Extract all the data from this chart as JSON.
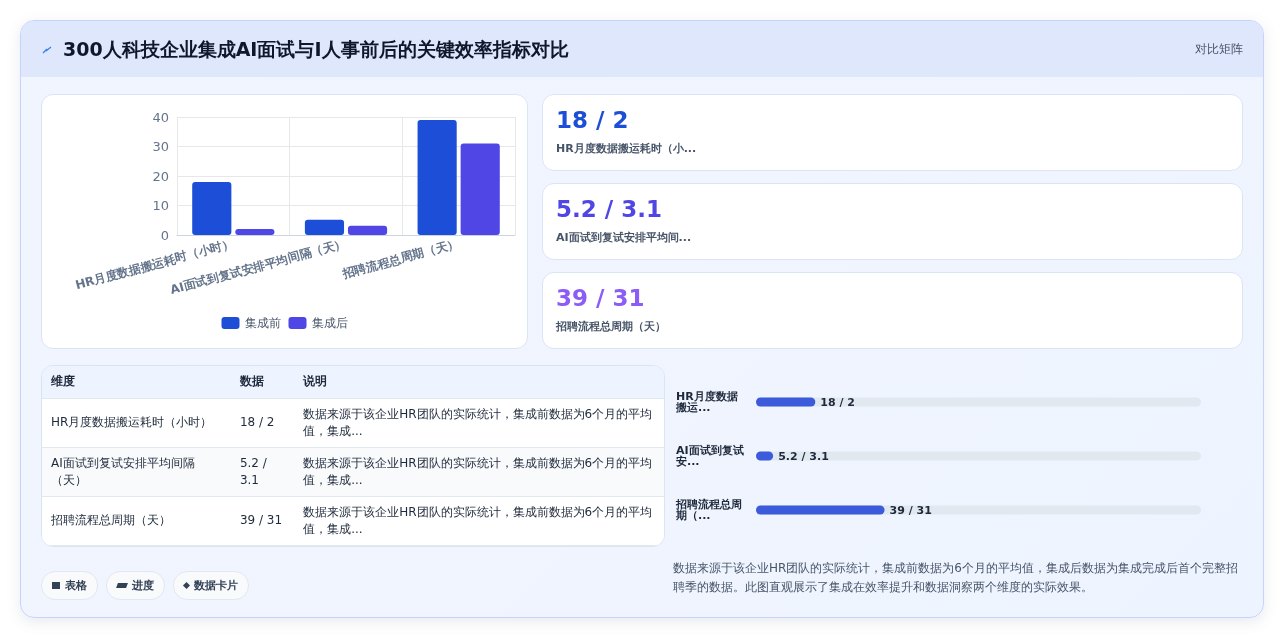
{
  "chart_data": [
    {
      "type": "other",
      "title": "300人科技企业集成AI面试与I人事前后的关键效率指标对比",
      "subtitle": "对比矩阵"
    },
    {
      "type": "bar",
      "categories": [
        "HR月度数据搬运耗时（小时）",
        "AI面试到复试安排平均间隔（天）",
        "招聘流程总周期（天）"
      ],
      "series": [
        {
          "name": "集成前",
          "color": "#1d4ed8",
          "values": [
            18,
            5.2,
            39
          ]
        },
        {
          "name": "集成后",
          "color": "#4f46e5",
          "values": [
            2,
            3.1,
            31
          ]
        }
      ],
      "ylim": [
        0,
        40
      ],
      "yticks": [
        0,
        10,
        20,
        30,
        40
      ],
      "grid": true,
      "legend": "bottom"
    },
    {
      "type": "other",
      "annotations": [
        "18 / 2",
        "HR月度数据搬运耗时（小...",
        "5.2 / 3.1",
        "AI面试到复试安排平均间...",
        "39 / 31",
        "招聘流程总周期（天）"
      ]
    },
    {
      "type": "other",
      "annotations": [
        "维度",
        "数据",
        "说明",
        "HR月度数据搬运耗时（小时）",
        "18 / 2",
        "数据来源于该企业HR团队的实际统计，集成前数据为6个月的平均值，集成...",
        "AI面试到复试安排平均间隔（天）",
        "5.2 / 3.1",
        "数据来源于该企业HR团队的实际统计，集成前数据为6个月的平均值，集成...",
        "招聘流程总周期（天）",
        "39 / 31",
        "数据来源于该企业HR团队的实际统计，集成前数据为6个月的平均值，集成..."
      ]
    },
    {
      "type": "bar",
      "orientation": "horizontal",
      "categories": [
        "HR月度数据搬运...",
        "AI面试到复试安...",
        "招聘流程总周期（..."
      ],
      "values": [
        18,
        5.2,
        39
      ],
      "color": "#3b5bdb",
      "xlim": [
        0,
        135
      ],
      "tick_labels": "y",
      "value_labels": [
        "18 / 2",
        "5.2 / 3.1",
        "39 / 31"
      ],
      "annotations": [
        "数据来源于该企业HR团队的实际统计，集成前数据为6个月的平均值，集成后数据为集成完成后首个完整招聘季的数据。此图直观展示了集成在效率提升和数据洞察两个维度的实际效果。"
      ]
    },
    {
      "type": "other",
      "annotations": [
        "表格",
        "进度",
        "数据卡片"
      ]
    }
  ]
}
